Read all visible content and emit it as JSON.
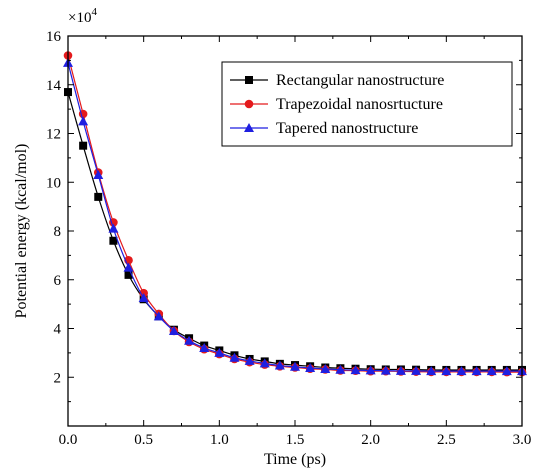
{
  "chart_data": {
    "type": "line",
    "xlabel": "Time (ps)",
    "ylabel": "Potential energy (kcal/mol)",
    "y_multiplier": "×10",
    "y_multiplier_exp": "4",
    "xlim": [
      0,
      3.0
    ],
    "ylim": [
      0,
      16
    ],
    "x_ticks": [
      "0.0",
      "0.5",
      "1.0",
      "1.5",
      "2.0",
      "2.5",
      "3.0"
    ],
    "y_ticks": [
      "2",
      "4",
      "6",
      "8",
      "10",
      "12",
      "14",
      "16"
    ],
    "grid": false,
    "legend_position": "top-right",
    "x": [
      0.0,
      0.1,
      0.2,
      0.3,
      0.4,
      0.5,
      0.6,
      0.7,
      0.8,
      0.9,
      1.0,
      1.1,
      1.2,
      1.3,
      1.4,
      1.5,
      1.6,
      1.7,
      1.8,
      1.9,
      2.0,
      2.1,
      2.2,
      2.3,
      2.4,
      2.5,
      2.6,
      2.7,
      2.8,
      2.9,
      3.0
    ],
    "series": [
      {
        "name": "Rectangular nanostructure",
        "color": "#000000",
        "marker": "square",
        "values": [
          13.7,
          11.5,
          9.4,
          7.6,
          6.2,
          5.2,
          4.5,
          3.95,
          3.6,
          3.3,
          3.1,
          2.9,
          2.75,
          2.65,
          2.55,
          2.5,
          2.45,
          2.4,
          2.37,
          2.35,
          2.33,
          2.32,
          2.32,
          2.31,
          2.3,
          2.3,
          2.3,
          2.3,
          2.3,
          2.3,
          2.3
        ]
      },
      {
        "name": "Trapezoidal nanosrtucture",
        "color": "#e41a1c",
        "marker": "circle",
        "values": [
          15.2,
          12.8,
          10.4,
          8.35,
          6.8,
          5.45,
          4.6,
          3.9,
          3.45,
          3.15,
          2.95,
          2.75,
          2.62,
          2.52,
          2.45,
          2.4,
          2.35,
          2.32,
          2.28,
          2.27,
          2.25,
          2.25,
          2.24,
          2.23,
          2.22,
          2.22,
          2.22,
          2.22,
          2.22,
          2.21,
          2.21
        ]
      },
      {
        "name": "Tapered nanostructure",
        "color": "#1f1fe0",
        "marker": "triangle",
        "values": [
          14.9,
          12.5,
          10.3,
          8.1,
          6.5,
          5.25,
          4.5,
          3.9,
          3.5,
          3.2,
          3.0,
          2.8,
          2.67,
          2.57,
          2.48,
          2.43,
          2.38,
          2.34,
          2.31,
          2.29,
          2.28,
          2.27,
          2.26,
          2.26,
          2.25,
          2.25,
          2.25,
          2.25,
          2.25,
          2.25,
          2.25
        ]
      }
    ]
  }
}
